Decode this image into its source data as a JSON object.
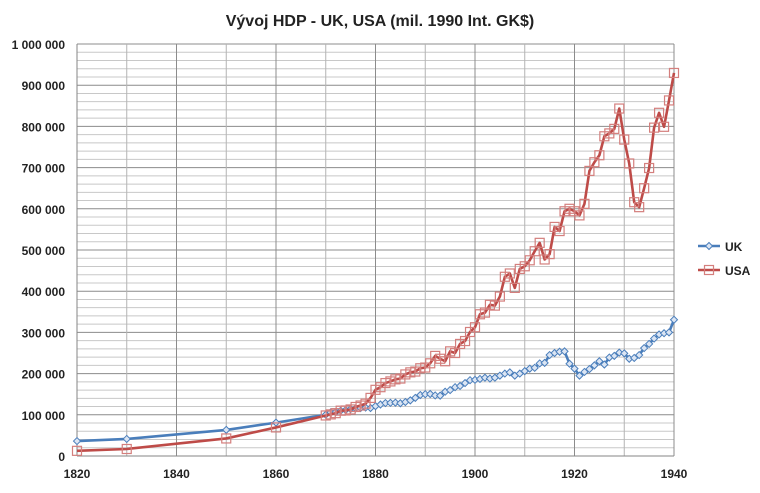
{
  "chart_data": {
    "type": "line",
    "title": "Vývoj HDP - UK, USA (mil. 1990 Int. GK$)",
    "xlabel": "",
    "ylabel": "",
    "xlim": [
      1820,
      1940
    ],
    "ylim": [
      0,
      1000000
    ],
    "xticks": [
      "1820",
      "1840",
      "1860",
      "1880",
      "1900",
      "1920",
      "1940"
    ],
    "yticks": [
      "0",
      "100 000",
      "200 000",
      "300 000",
      "400 000",
      "500 000",
      "600 000",
      "700 000",
      "800 000",
      "900 000",
      "1 000 000"
    ],
    "grid": true,
    "legend_position": "right",
    "x": [
      1820,
      1830,
      1850,
      1860,
      1870,
      1871,
      1872,
      1873,
      1874,
      1875,
      1876,
      1877,
      1878,
      1879,
      1880,
      1881,
      1882,
      1883,
      1884,
      1885,
      1886,
      1887,
      1888,
      1889,
      1890,
      1891,
      1892,
      1893,
      1894,
      1895,
      1896,
      1897,
      1898,
      1899,
      1900,
      1901,
      1902,
      1903,
      1904,
      1905,
      1906,
      1907,
      1908,
      1909,
      1910,
      1911,
      1912,
      1913,
      1914,
      1915,
      1916,
      1917,
      1918,
      1919,
      1920,
      1921,
      1922,
      1923,
      1924,
      1925,
      1926,
      1927,
      1928,
      1929,
      1930,
      1931,
      1932,
      1933,
      1934,
      1935,
      1936,
      1937,
      1938,
      1939,
      1940
    ],
    "series": [
      {
        "name": "UK",
        "color": "#4a7ebb",
        "marker": "diamond",
        "values": [
          36232,
          41373,
          63342,
          81000,
          100180,
          106000,
          106500,
          110000,
          111500,
          114000,
          115500,
          116500,
          117500,
          116500,
          121000,
          125000,
          128500,
          129000,
          129500,
          128000,
          131000,
          135000,
          141000,
          148000,
          150000,
          150500,
          147000,
          146500,
          156000,
          160000,
          167000,
          170000,
          177000,
          184000,
          184861,
          187000,
          190000,
          188000,
          190000,
          195000,
          200000,
          203000,
          195000,
          200000,
          206000,
          212000,
          214000,
          224618,
          226000,
          245000,
          250000,
          253000,
          254000,
          224000,
          212000,
          195000,
          204000,
          211000,
          220000,
          230000,
          222000,
          239000,
          243000,
          251000,
          249000,
          236000,
          238000,
          245000,
          262000,
          272000,
          285000,
          295000,
          298000,
          300000,
          330638
        ]
      },
      {
        "name": "USA",
        "color": "#be4b48",
        "marker": "square",
        "values": [
          12548,
          17000,
          42583,
          69346,
          98374,
          101000,
          104000,
          110000,
          110500,
          113000,
          119000,
          122500,
          127000,
          141000,
          160656,
          167000,
          177000,
          181000,
          186000,
          188000,
          198000,
          203000,
          205000,
          213000,
          214714,
          225000,
          243000,
          236000,
          230000,
          254000,
          250000,
          272000,
          279000,
          301000,
          312499,
          344000,
          348000,
          367000,
          365000,
          387000,
          435000,
          443000,
          408000,
          454000,
          460471,
          475000,
          497000,
          517383,
          477000,
          490000,
          556000,
          546000,
          594000,
          600000,
          594000,
          584000,
          612000,
          692000,
          713000,
          730000,
          776000,
          783000,
          794000,
          843334,
          768000,
          710000,
          616000,
          604000,
          650000,
          699000,
          797000,
          833000,
          799000,
          863000,
          929737
        ]
      }
    ]
  }
}
